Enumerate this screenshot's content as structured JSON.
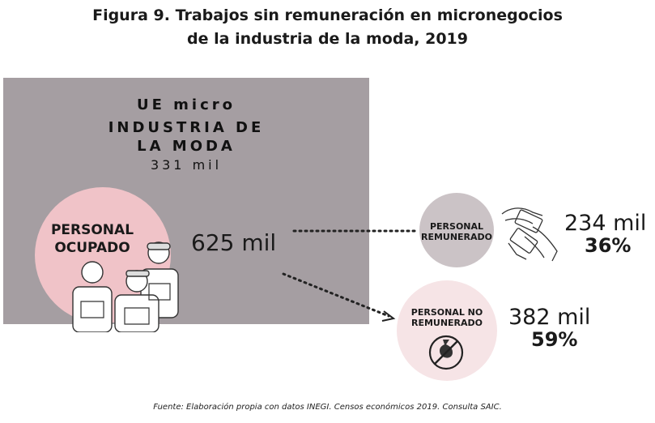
{
  "title": {
    "line1": "Figura 9. Trabajos sin remuneración en micronegocios",
    "line2": "de la industria de la moda, 2019"
  },
  "units": {
    "line1": "UE micro",
    "line2": "INDUSTRIA DE",
    "line3": "LA MODA",
    "count": "331 mil"
  },
  "personal_ocupado": {
    "label_line1": "PERSONAL",
    "label_line2": "OCUPADO",
    "total": "625 mil"
  },
  "remunerado": {
    "label_line1": "PERSONAL",
    "label_line2": "REMUNERADO",
    "value": "234 mil",
    "percent": "36%"
  },
  "no_remunerado": {
    "label_line1": "PERSONAL NO",
    "label_line2": "REMUNERADO",
    "value": "382 mil",
    "percent": "59%"
  },
  "source": "Fuente: Elaboración propia con datos INEGI. Censos económicos 2019. Consulta SAIC.",
  "colors": {
    "panel": "#a59ea2",
    "ocupado_circle": "#f0c3c8",
    "remunerado_circle": "#cbc3c6",
    "no_remunerado_circle": "#f6e4e6"
  },
  "icons": [
    "workers-icon",
    "money-hands-icon",
    "no-money-icon"
  ]
}
